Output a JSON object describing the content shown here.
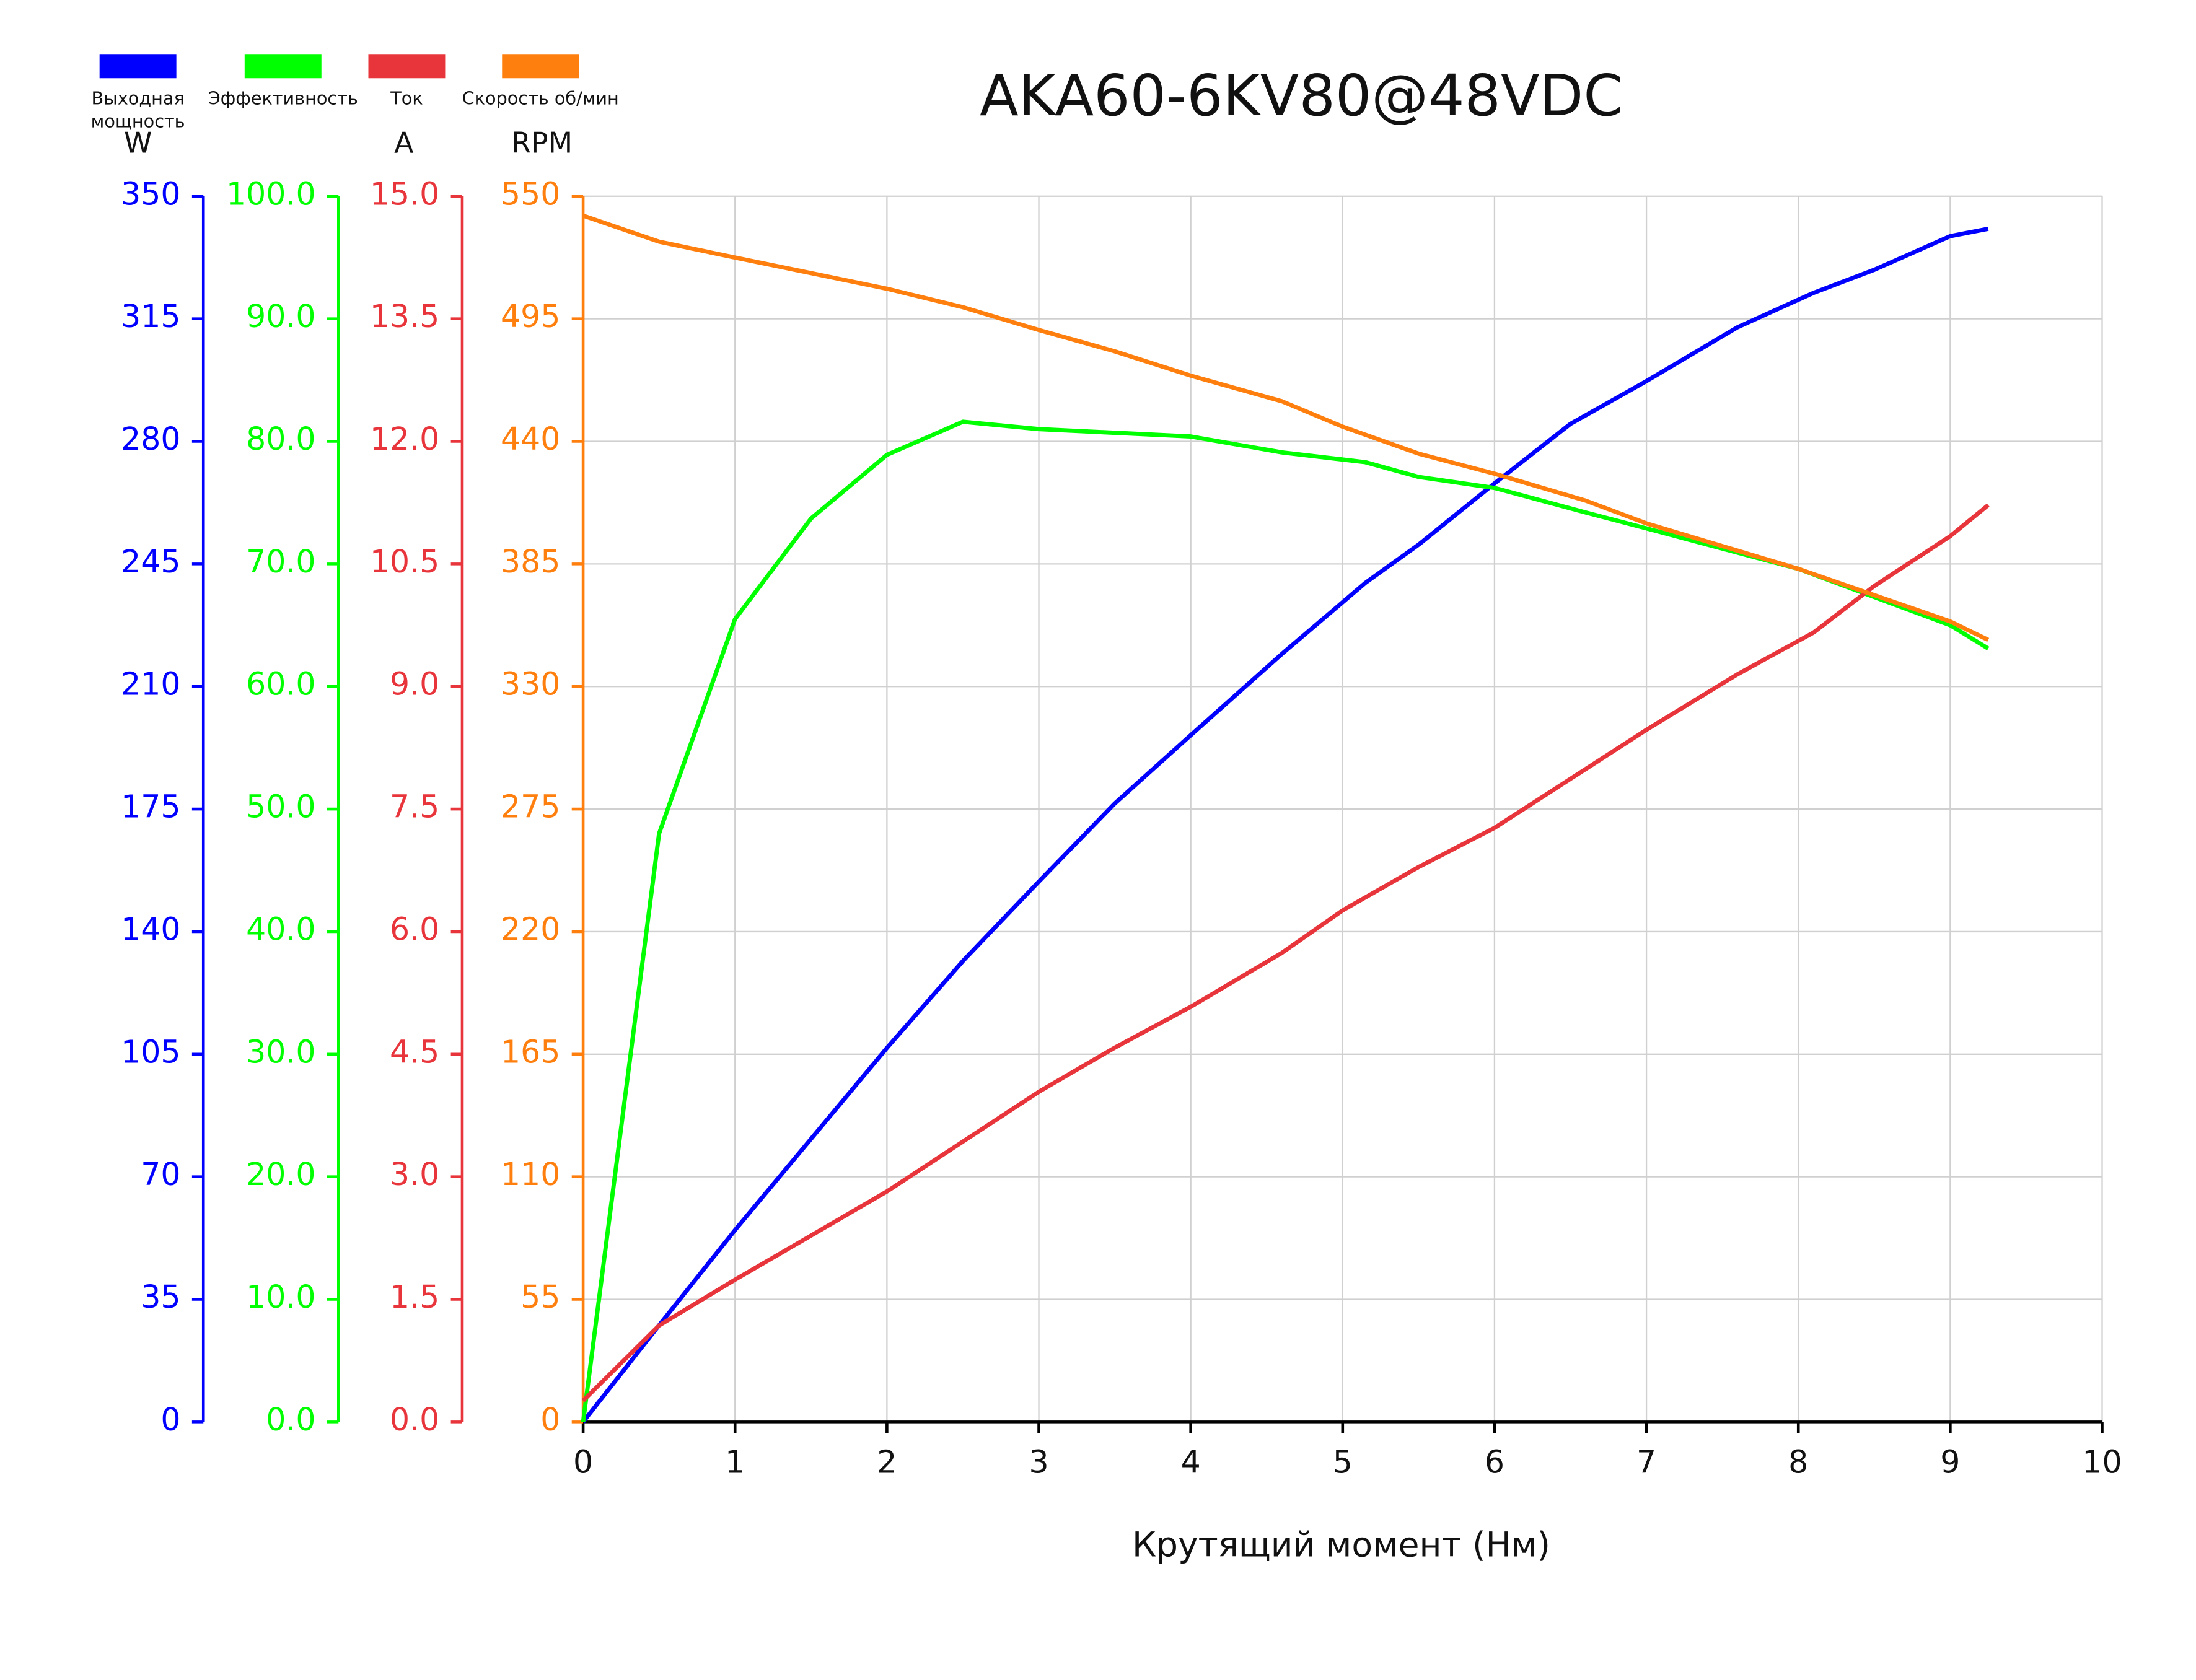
{
  "chart_data": {
    "type": "line",
    "title": "AKA60-6KV80@48VDC",
    "xlabel": "Крутящий момент (Нм)",
    "xlim": [
      0,
      10
    ],
    "xticks": [
      0,
      1,
      2,
      3,
      4,
      5,
      6,
      7,
      8,
      9,
      10
    ],
    "ylim": [
      0,
      350
    ],
    "yticks": [
      0,
      35,
      70,
      105,
      140,
      175,
      210,
      245,
      280,
      315,
      350
    ],
    "ylabel": "W",
    "y2lim": [
      0,
      100
    ],
    "y2ticks": [
      {
        "value": 0,
        "label": "0.0"
      },
      {
        "value": 10,
        "label": "10.0"
      },
      {
        "value": 20,
        "label": "20.0"
      },
      {
        "value": 30,
        "label": "30.0"
      },
      {
        "value": 40,
        "label": "40.0"
      },
      {
        "value": 50,
        "label": "50.0"
      },
      {
        "value": 60,
        "label": "60.0"
      },
      {
        "value": 70,
        "label": "70.0"
      },
      {
        "value": 80,
        "label": "80.0"
      },
      {
        "value": 90,
        "label": "90.0"
      },
      {
        "value": 100,
        "label": "100.0"
      }
    ],
    "y3lim": [
      0,
      15
    ],
    "y3ticks": [
      {
        "value": 0,
        "label": "0.0"
      },
      1.5,
      {
        "value": 3,
        "label": "3.0"
      },
      4.5,
      {
        "value": 6,
        "label": "6.0"
      },
      7.5,
      {
        "value": 9,
        "label": "9.0"
      },
      10.5,
      {
        "value": 12,
        "label": "12.0"
      },
      13.5,
      {
        "value": 15,
        "label": "15.0"
      }
    ],
    "y3label": "A",
    "y4lim": [
      0,
      550
    ],
    "y4ticks": [
      0,
      55,
      110,
      165,
      220,
      275,
      330,
      385,
      440,
      495,
      550
    ],
    "y4label": "RPM",
    "grid": true,
    "legend": "top-left",
    "series": [
      {
        "name": "Выходная мощность",
        "color": "#0000ff",
        "axis": "y",
        "x": [
          0,
          0.5,
          1,
          2,
          2.5,
          3,
          3.5,
          4,
          4.6,
          5.15,
          5.5,
          6,
          6.5,
          7,
          7.6,
          8.1,
          8.5,
          9,
          9.25
        ],
        "values": [
          0,
          27.6,
          54.8,
          106.8,
          131.6,
          154.3,
          176.6,
          196.1,
          219.3,
          239.6,
          250.5,
          268,
          285,
          297.2,
          312.6,
          322.4,
          329,
          338.6,
          340.7
        ]
      },
      {
        "name": "Эффективность",
        "color": "#00ff00",
        "axis": "y2",
        "x": [
          0,
          0.5,
          1,
          1.5,
          2,
          2.5,
          3,
          4,
          4.6,
          5.15,
          5.5,
          6,
          6.6,
          7,
          8,
          9,
          9.25
        ],
        "values": [
          0,
          48,
          65.5,
          73.7,
          78.9,
          81.6,
          81.0,
          80.4,
          79.1,
          78.3,
          77.1,
          76.2,
          74.2,
          72.9,
          69.6,
          65.0,
          63.1
        ]
      },
      {
        "name": "Ток",
        "color": "#e8353b",
        "axis": "y3",
        "x": [
          0,
          0.5,
          1,
          2,
          2.5,
          3,
          3.5,
          4,
          4.6,
          5,
          5.5,
          6,
          6.5,
          7,
          7.6,
          8.1,
          8.5,
          9,
          9.25
        ],
        "values": [
          0.26,
          1.18,
          1.74,
          2.82,
          3.43,
          4.04,
          4.58,
          5.08,
          5.74,
          6.26,
          6.79,
          7.27,
          7.87,
          8.47,
          9.15,
          9.66,
          10.23,
          10.84,
          11.22
        ]
      },
      {
        "name": "Скорость об/мин",
        "color": "#ff7f0e",
        "axis": "y4",
        "x": [
          0,
          0.5,
          1,
          1.5,
          2,
          2.5,
          3,
          3.5,
          4,
          4.6,
          5,
          5.5,
          6,
          6.6,
          7,
          8,
          9,
          9.25
        ],
        "values": [
          541.3,
          529.6,
          522.5,
          515.5,
          508.5,
          500.2,
          490,
          480.4,
          469.5,
          458,
          446.6,
          434.5,
          425.5,
          413.4,
          403.2,
          382.8,
          359.2,
          350.9
        ]
      }
    ]
  }
}
